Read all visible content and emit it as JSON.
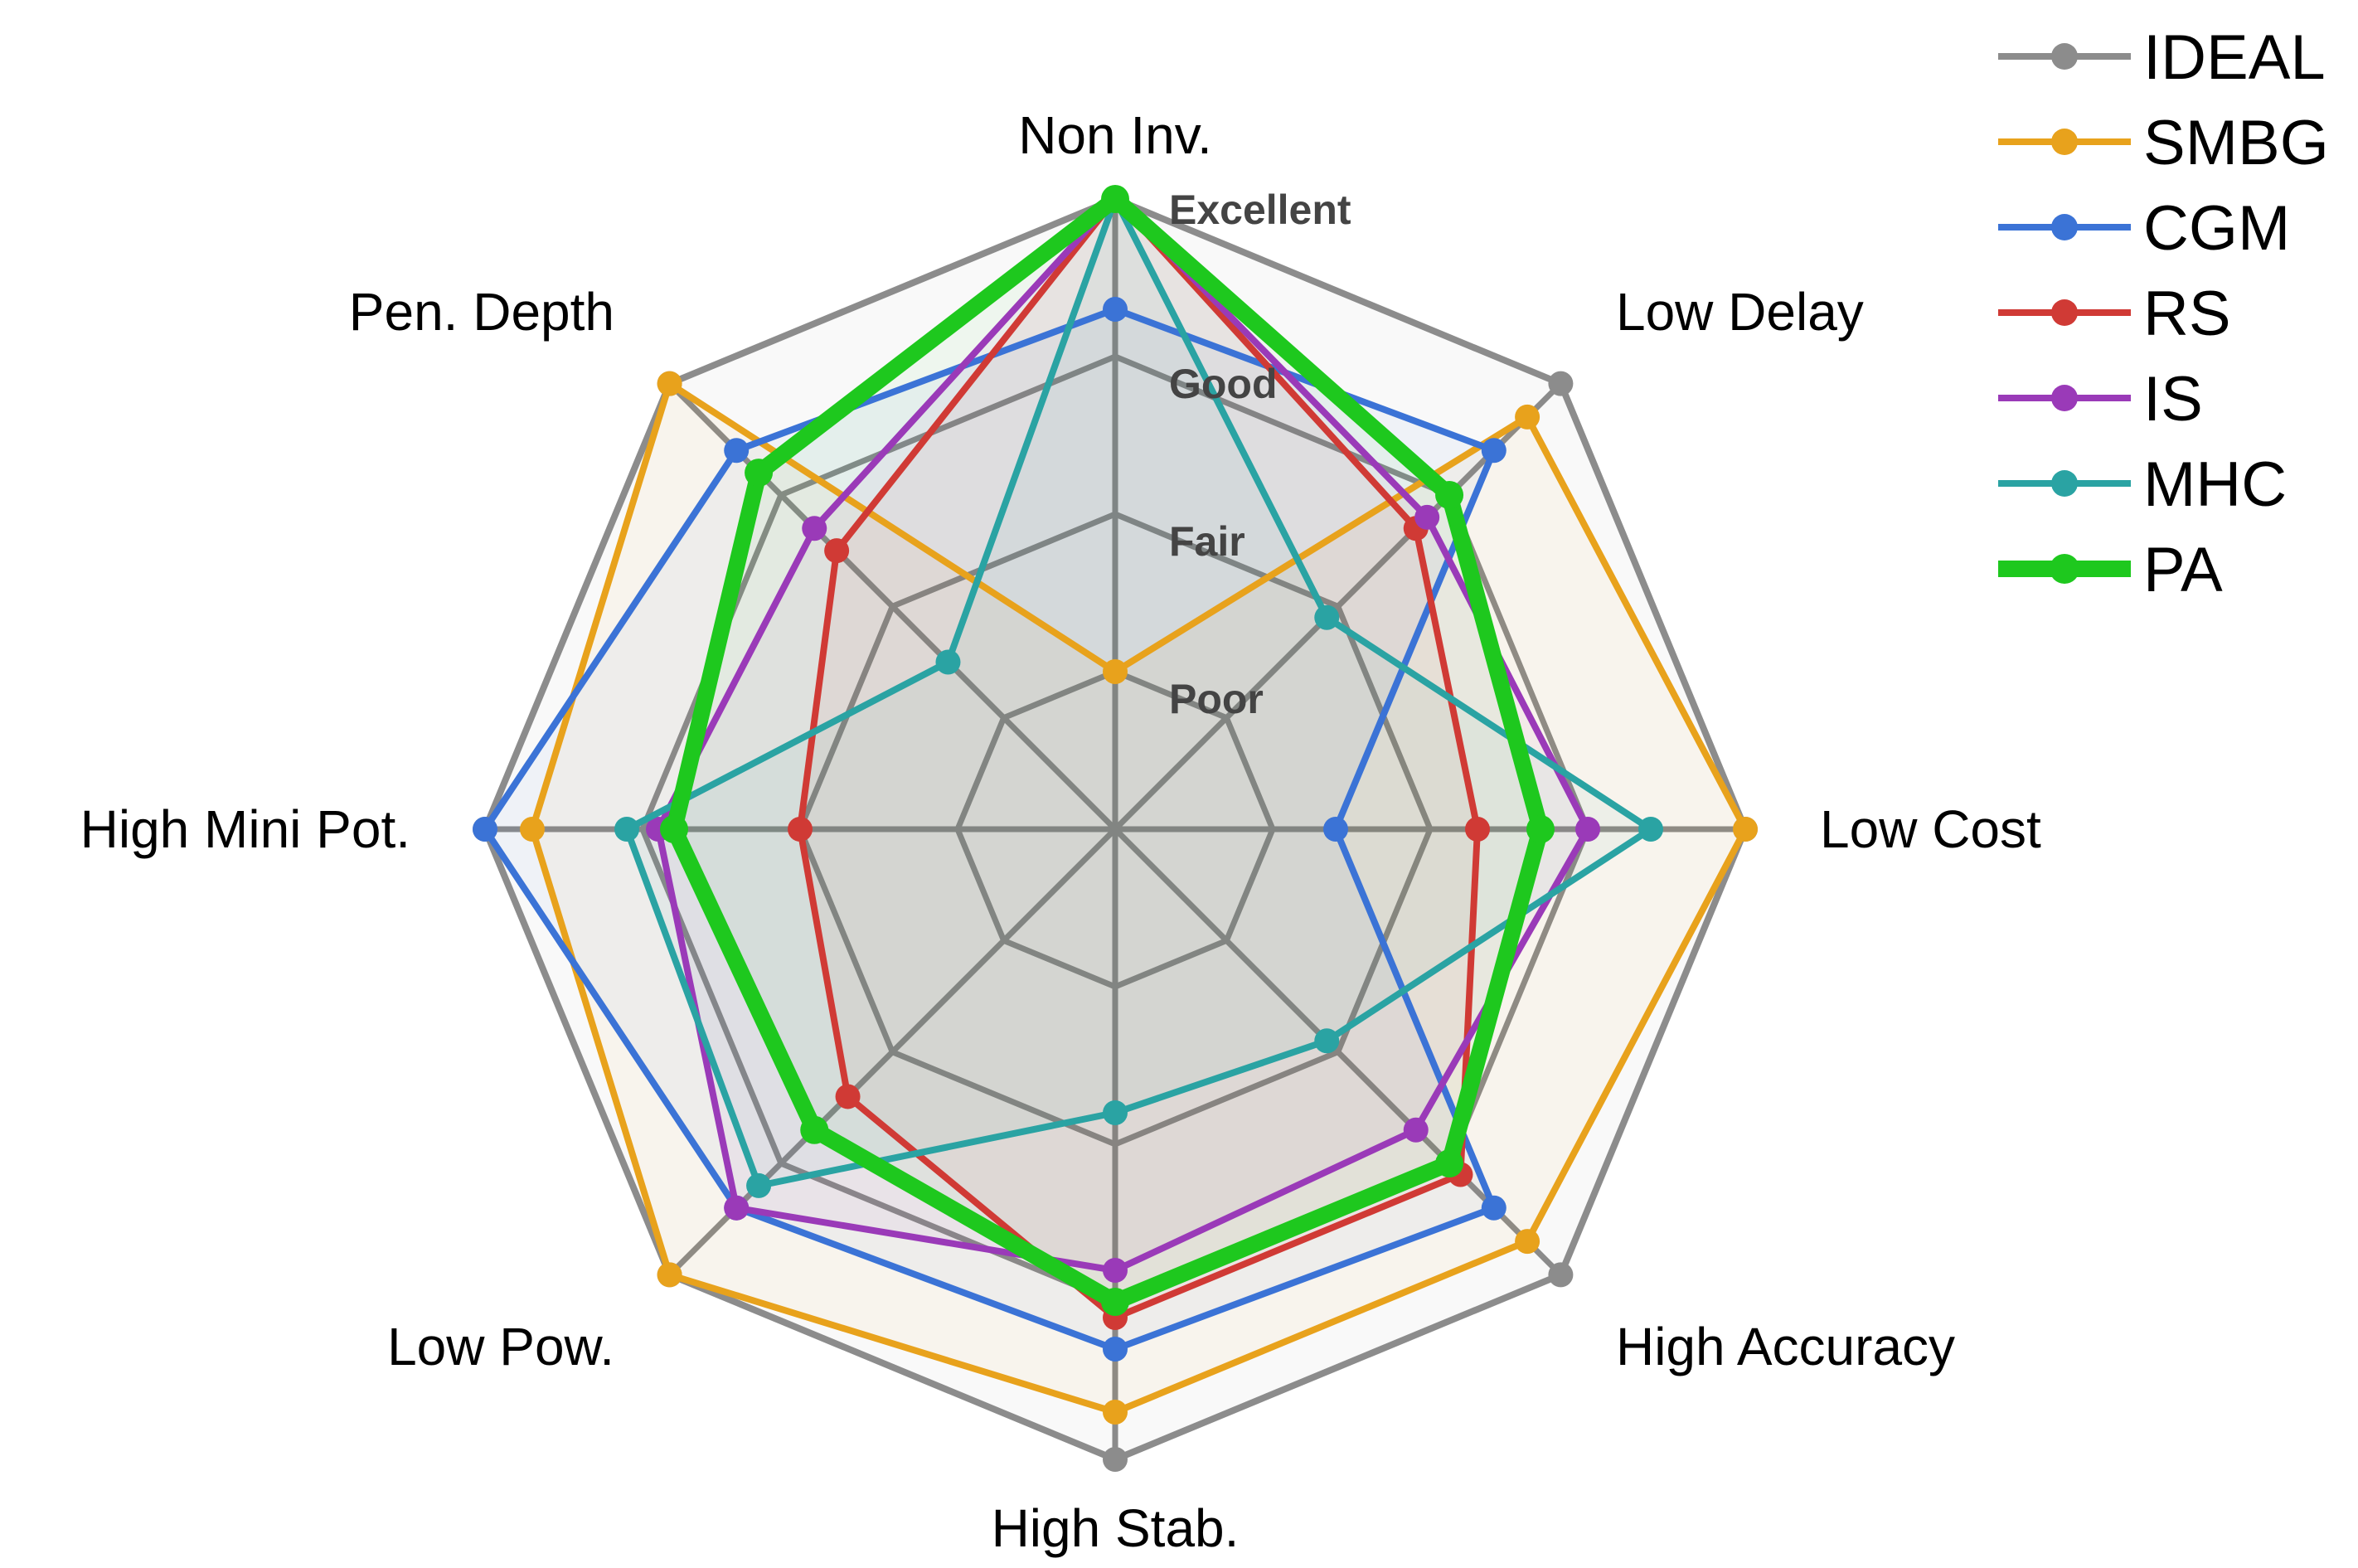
{
  "chart_data": {
    "type": "radar",
    "axes": [
      "Non Inv.",
      "Low Delay",
      "Low Cost",
      "High Accuracy",
      "High Stab.",
      "Low Pow.",
      "High Mini Pot.",
      "Pen. Depth"
    ],
    "levels": [
      "Poor",
      "Good",
      "Fair",
      "Excellent"
    ],
    "level_labels_in_order": [
      "Poor",
      "Fair",
      "Good",
      "Excellent"
    ],
    "rmax": 4,
    "legend_position": "top-right",
    "series": [
      {
        "name": "IDEAL",
        "color": "#8c8c8c",
        "values": [
          4,
          4,
          4,
          4,
          4,
          4,
          4,
          4
        ]
      },
      {
        "name": "SMBG",
        "color": "#e8a21c",
        "values": [
          1,
          3.7,
          4,
          3.7,
          3.7,
          4,
          3.7,
          4
        ]
      },
      {
        "name": "CGM",
        "color": "#3b73d6",
        "values": [
          3.3,
          3.4,
          1.4,
          3.4,
          3.3,
          3.4,
          4,
          3.4
        ]
      },
      {
        "name": "RS",
        "color": "#d03a35",
        "values": [
          4,
          2.7,
          2.3,
          3.1,
          3.1,
          2.4,
          2,
          2.5
        ]
      },
      {
        "name": "IS",
        "color": "#9a3ab8",
        "values": [
          4,
          2.8,
          3,
          2.7,
          2.8,
          3.4,
          2.9,
          2.7
        ]
      },
      {
        "name": "MHC",
        "color": "#2aa3a3",
        "values": [
          4,
          1.9,
          3.4,
          1.9,
          1.8,
          3.2,
          3.1,
          1.5
        ]
      },
      {
        "name": "PA",
        "color": "#1ec81e",
        "values": [
          4,
          3,
          2.7,
          3,
          3,
          2.7,
          2.8,
          3.2
        ]
      }
    ]
  }
}
